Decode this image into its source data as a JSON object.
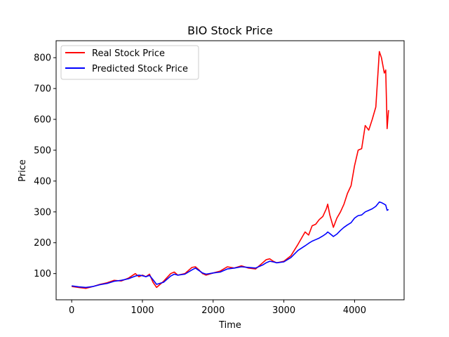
{
  "chart_data": {
    "type": "line",
    "title": "BIO Stock Price",
    "xlabel": "Time",
    "ylabel": "Price",
    "xlim": [
      -220,
      4700
    ],
    "ylim": [
      15,
      855
    ],
    "xticks": [
      0,
      1000,
      2000,
      3000,
      4000
    ],
    "yticks": [
      100,
      200,
      300,
      400,
      500,
      600,
      700,
      800
    ],
    "grid": false,
    "legend_position": "top-left",
    "series": [
      {
        "name": "Real Stock Price",
        "color": "#ff0000",
        "points": [
          [
            0,
            58
          ],
          [
            100,
            55
          ],
          [
            200,
            52
          ],
          [
            300,
            58
          ],
          [
            400,
            65
          ],
          [
            500,
            70
          ],
          [
            600,
            78
          ],
          [
            700,
            76
          ],
          [
            800,
            85
          ],
          [
            900,
            100
          ],
          [
            950,
            90
          ],
          [
            1000,
            95
          ],
          [
            1050,
            90
          ],
          [
            1100,
            98
          ],
          [
            1150,
            72
          ],
          [
            1200,
            55
          ],
          [
            1300,
            75
          ],
          [
            1400,
            100
          ],
          [
            1450,
            105
          ],
          [
            1500,
            95
          ],
          [
            1600,
            100
          ],
          [
            1700,
            120
          ],
          [
            1750,
            122
          ],
          [
            1800,
            112
          ],
          [
            1850,
            100
          ],
          [
            1900,
            95
          ],
          [
            2000,
            102
          ],
          [
            2100,
            108
          ],
          [
            2200,
            122
          ],
          [
            2300,
            118
          ],
          [
            2400,
            125
          ],
          [
            2500,
            118
          ],
          [
            2600,
            115
          ],
          [
            2700,
            135
          ],
          [
            2750,
            145
          ],
          [
            2800,
            148
          ],
          [
            2850,
            140
          ],
          [
            2900,
            135
          ],
          [
            3000,
            140
          ],
          [
            3100,
            158
          ],
          [
            3200,
            195
          ],
          [
            3300,
            235
          ],
          [
            3350,
            225
          ],
          [
            3400,
            255
          ],
          [
            3450,
            260
          ],
          [
            3500,
            275
          ],
          [
            3550,
            285
          ],
          [
            3600,
            310
          ],
          [
            3620,
            325
          ],
          [
            3650,
            290
          ],
          [
            3700,
            250
          ],
          [
            3750,
            280
          ],
          [
            3800,
            300
          ],
          [
            3850,
            325
          ],
          [
            3900,
            360
          ],
          [
            3950,
            385
          ],
          [
            4000,
            450
          ],
          [
            4050,
            500
          ],
          [
            4100,
            505
          ],
          [
            4150,
            580
          ],
          [
            4200,
            565
          ],
          [
            4250,
            600
          ],
          [
            4300,
            640
          ],
          [
            4350,
            820
          ],
          [
            4380,
            800
          ],
          [
            4420,
            750
          ],
          [
            4440,
            760
          ],
          [
            4460,
            570
          ],
          [
            4480,
            630
          ]
        ]
      },
      {
        "name": "Predicted Stock Price",
        "color": "#0000ff",
        "points": [
          [
            0,
            60
          ],
          [
            100,
            57
          ],
          [
            200,
            55
          ],
          [
            300,
            58
          ],
          [
            400,
            64
          ],
          [
            500,
            68
          ],
          [
            600,
            75
          ],
          [
            700,
            78
          ],
          [
            800,
            83
          ],
          [
            900,
            92
          ],
          [
            950,
            95
          ],
          [
            1000,
            93
          ],
          [
            1050,
            90
          ],
          [
            1100,
            94
          ],
          [
            1150,
            80
          ],
          [
            1200,
            65
          ],
          [
            1300,
            72
          ],
          [
            1400,
            92
          ],
          [
            1450,
            98
          ],
          [
            1500,
            95
          ],
          [
            1600,
            98
          ],
          [
            1700,
            112
          ],
          [
            1750,
            118
          ],
          [
            1800,
            110
          ],
          [
            1850,
            102
          ],
          [
            1900,
            98
          ],
          [
            2000,
            102
          ],
          [
            2100,
            105
          ],
          [
            2200,
            115
          ],
          [
            2300,
            118
          ],
          [
            2400,
            122
          ],
          [
            2500,
            120
          ],
          [
            2600,
            118
          ],
          [
            2700,
            128
          ],
          [
            2750,
            135
          ],
          [
            2800,
            140
          ],
          [
            2850,
            138
          ],
          [
            2900,
            135
          ],
          [
            3000,
            138
          ],
          [
            3100,
            152
          ],
          [
            3200,
            175
          ],
          [
            3300,
            190
          ],
          [
            3350,
            198
          ],
          [
            3400,
            205
          ],
          [
            3450,
            210
          ],
          [
            3500,
            215
          ],
          [
            3550,
            222
          ],
          [
            3600,
            230
          ],
          [
            3620,
            235
          ],
          [
            3650,
            230
          ],
          [
            3700,
            220
          ],
          [
            3750,
            228
          ],
          [
            3800,
            240
          ],
          [
            3850,
            250
          ],
          [
            3900,
            258
          ],
          [
            3950,
            265
          ],
          [
            4000,
            280
          ],
          [
            4050,
            288
          ],
          [
            4100,
            290
          ],
          [
            4150,
            300
          ],
          [
            4200,
            305
          ],
          [
            4250,
            310
          ],
          [
            4300,
            318
          ],
          [
            4350,
            332
          ],
          [
            4380,
            330
          ],
          [
            4420,
            325
          ],
          [
            4440,
            322
          ],
          [
            4460,
            305
          ],
          [
            4480,
            308
          ]
        ]
      }
    ]
  }
}
